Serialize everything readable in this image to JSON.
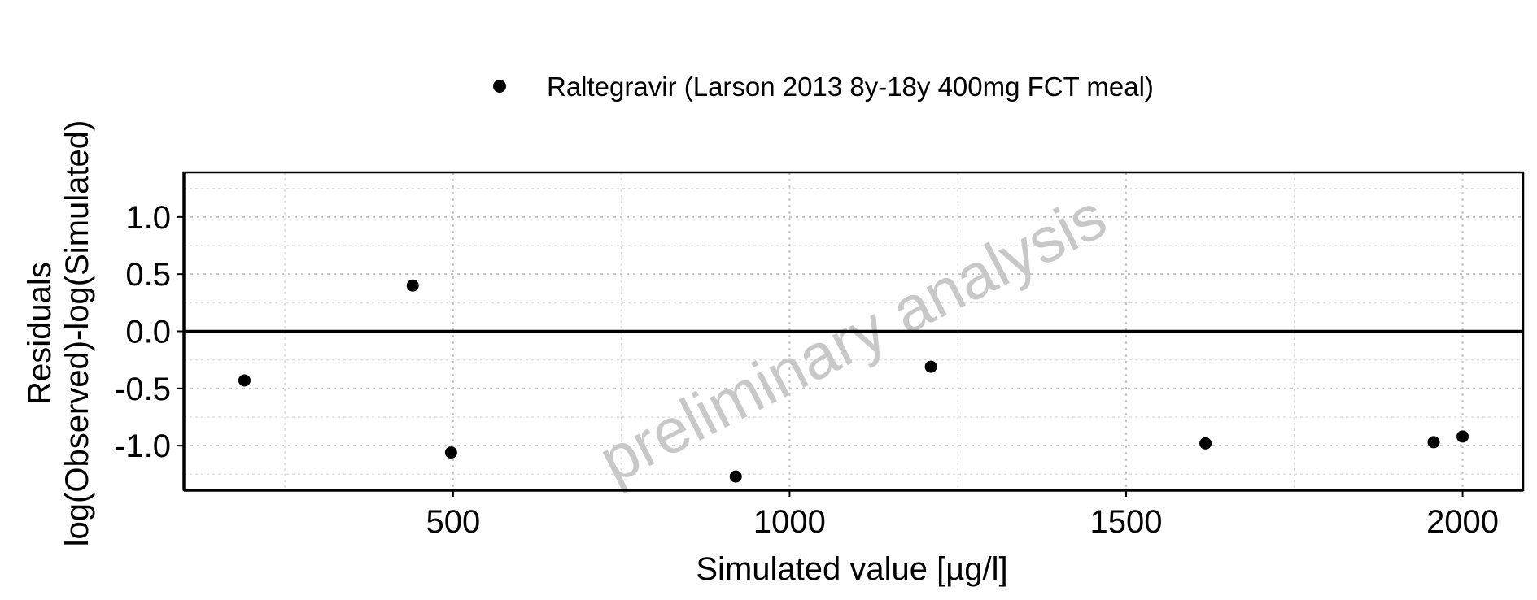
{
  "chart_data": {
    "type": "scatter",
    "title": "",
    "xlabel": "Simulated value [µg/l]",
    "ylabel_lines": [
      "Residuals",
      "log(Observed)-log(Simulated)"
    ],
    "xlim": [
      100,
      2090
    ],
    "ylim": [
      -1.39,
      1.39
    ],
    "x_ticks": [
      500,
      1000,
      1500,
      2000
    ],
    "x_tick_labels": [
      "500",
      "1000",
      "1500",
      "2000"
    ],
    "y_ticks": [
      1.0,
      0.5,
      0.0,
      -0.5,
      -1.0
    ],
    "y_tick_labels": [
      "1.0",
      "0.5",
      "0.0",
      "-0.5",
      "-1.0"
    ],
    "grid": true,
    "zero_line": true,
    "legend_position": "top",
    "watermark": "preliminary analysis",
    "series": [
      {
        "name": "Raltegravir (Larson 2013 8y-18y 400mg FCT meal)",
        "color": "#000000",
        "marker": "circle",
        "points": [
          {
            "x": 190,
            "y": -0.43
          },
          {
            "x": 440,
            "y": 0.4
          },
          {
            "x": 497,
            "y": -1.06
          },
          {
            "x": 920,
            "y": -1.27
          },
          {
            "x": 1210,
            "y": -0.31
          },
          {
            "x": 1618,
            "y": -0.98
          },
          {
            "x": 1957,
            "y": -0.97
          },
          {
            "x": 2000,
            "y": -0.92
          }
        ]
      }
    ]
  }
}
